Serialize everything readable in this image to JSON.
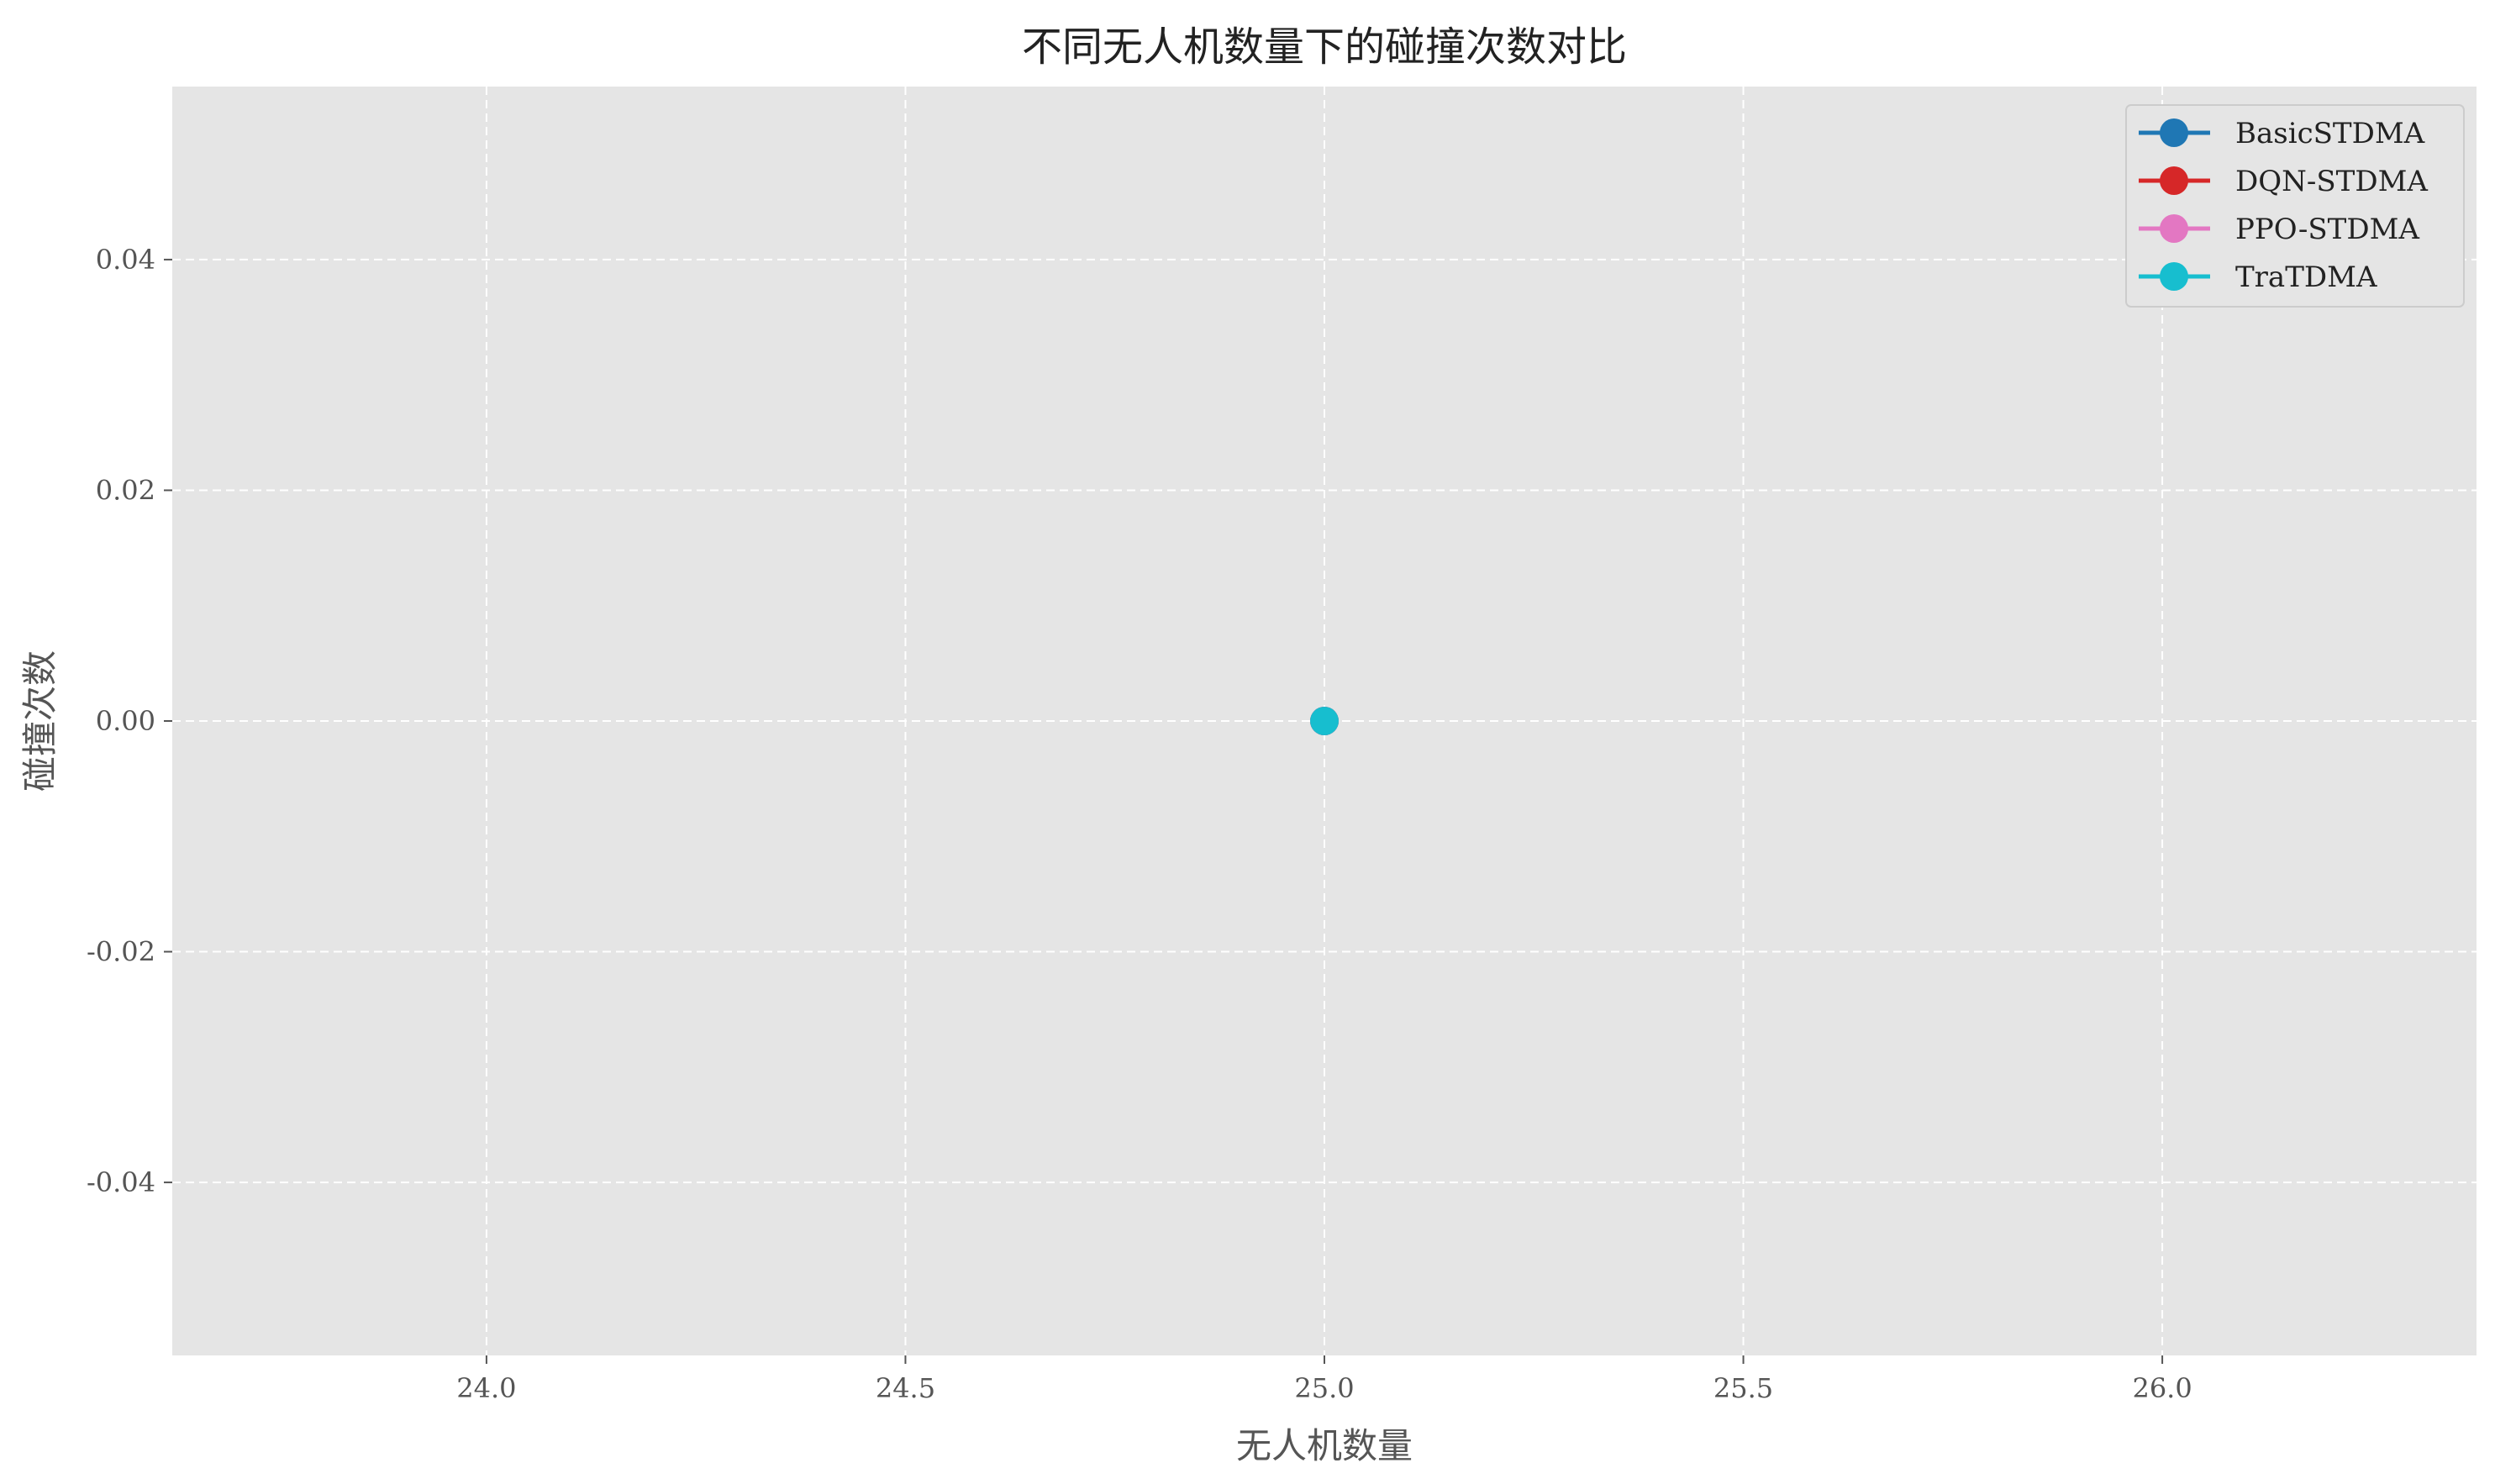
{
  "chart_data": {
    "type": "line",
    "title": "不同无人机数量下的碰撞次数对比",
    "xlabel": "无人机数量",
    "ylabel": "碰撞次数",
    "xlim": [
      23.625,
      26.375
    ],
    "ylim": [
      -0.055,
      0.055
    ],
    "x_ticks": [
      24.0,
      24.5,
      25.0,
      25.5,
      26.0
    ],
    "x_tick_labels": [
      "24.0",
      "24.5",
      "25.0",
      "25.5",
      "26.0"
    ],
    "y_ticks": [
      0.04,
      0.02,
      0.0,
      -0.02,
      -0.04
    ],
    "y_tick_labels": [
      "0.04",
      "0.02",
      "0.00",
      "-0.02",
      "-0.04"
    ],
    "grid": true,
    "legend_position": "top-right",
    "background_color": "#e5e5e5",
    "grid_color": "#ffffff",
    "series": [
      {
        "name": "BasicSTDMA",
        "color": "#1f77b4",
        "x": [
          25
        ],
        "y": [
          0
        ]
      },
      {
        "name": "DQN-STDMA",
        "color": "#d62728",
        "x": [
          25
        ],
        "y": [
          0
        ]
      },
      {
        "name": "PPO-STDMA",
        "color": "#e377c2",
        "x": [
          25
        ],
        "y": [
          0
        ]
      },
      {
        "name": "TraTDMA",
        "color": "#17becf",
        "x": [
          25
        ],
        "y": [
          0
        ]
      }
    ]
  }
}
